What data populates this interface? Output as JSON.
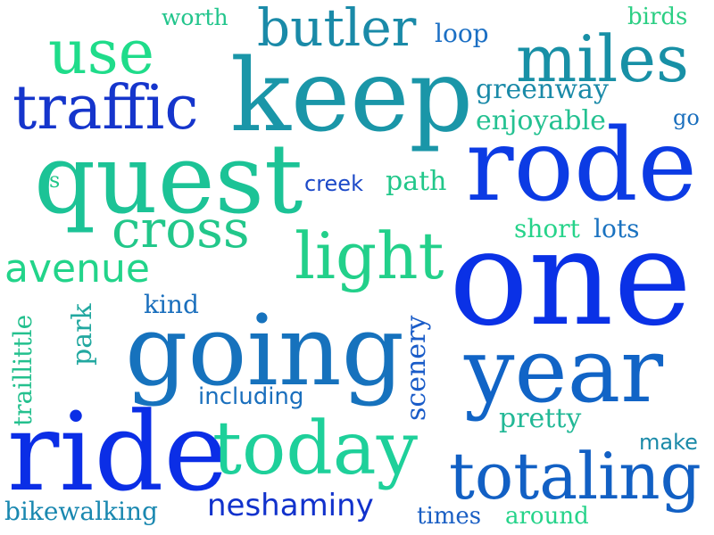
{
  "words": [
    {
      "key": "worth",
      "text": "worth",
      "color": "#22c58c"
    },
    {
      "key": "butler",
      "text": "butler",
      "color": "#1a8aa8"
    },
    {
      "key": "loop",
      "text": "loop",
      "color": "#1b6fc4"
    },
    {
      "key": "birds",
      "text": "birds",
      "color": "#2ccf84"
    },
    {
      "key": "use",
      "text": "use",
      "color": "#1fdc8a"
    },
    {
      "key": "keep",
      "text": "keep",
      "color": "#1a96a8"
    },
    {
      "key": "miles",
      "text": "miles",
      "color": "#1890a6"
    },
    {
      "key": "traffic",
      "text": "traffic",
      "color": "#1535cc"
    },
    {
      "key": "greenway",
      "text": "greenway",
      "color": "#1a8aa8"
    },
    {
      "key": "enjoyable",
      "text": "enjoyable",
      "color": "#24c191"
    },
    {
      "key": "go",
      "text": "go",
      "color": "#1a6fbd"
    },
    {
      "key": "quest",
      "text": "quest",
      "color": "#1cc396"
    },
    {
      "key": "rode",
      "text": "rode",
      "color": "#0c3be4"
    },
    {
      "key": "s",
      "text": "s",
      "color": "#22c78a"
    },
    {
      "key": "creek",
      "text": "creek",
      "color": "#1c49c8"
    },
    {
      "key": "path",
      "text": "path",
      "color": "#22c78a"
    },
    {
      "key": "cross",
      "text": "cross",
      "color": "#22c78a"
    },
    {
      "key": "light",
      "text": "light",
      "color": "#22d08a"
    },
    {
      "key": "short",
      "text": "short",
      "color": "#26d38a"
    },
    {
      "key": "lots",
      "text": "lots",
      "color": "#1a72c0"
    },
    {
      "key": "avenue",
      "text": "avenue",
      "color": "#22d48a"
    },
    {
      "key": "one",
      "text": "one",
      "color": "#0a31e6"
    },
    {
      "key": "kind",
      "text": "kind",
      "color": "#1a6fbd"
    },
    {
      "key": "park",
      "text": "park",
      "color": "#22a8a0"
    },
    {
      "key": "traillittle",
      "text": "traillittle",
      "color": "#24c08e"
    },
    {
      "key": "going",
      "text": "going",
      "color": "#1672bd"
    },
    {
      "key": "scenery",
      "text": "scenery",
      "color": "#1a5cc8"
    },
    {
      "key": "year",
      "text": "year",
      "color": "#1164c6"
    },
    {
      "key": "including",
      "text": "including",
      "color": "#1a6fbd"
    },
    {
      "key": "pretty",
      "text": "pretty",
      "color": "#22b896"
    },
    {
      "key": "ride",
      "text": "ride",
      "color": "#0b2ee6"
    },
    {
      "key": "today",
      "text": "today",
      "color": "#1ed09a"
    },
    {
      "key": "make",
      "text": "make",
      "color": "#1a8aa8"
    },
    {
      "key": "totaling",
      "text": "totaling",
      "color": "#1260c4"
    },
    {
      "key": "neshaminy",
      "text": "neshaminy",
      "color": "#1132cc"
    },
    {
      "key": "bikewalking",
      "text": "bikewalking",
      "color": "#1a88b0"
    },
    {
      "key": "times",
      "text": "times",
      "color": "#1a5fc4"
    },
    {
      "key": "around",
      "text": "around",
      "color": "#26d38a"
    }
  ]
}
